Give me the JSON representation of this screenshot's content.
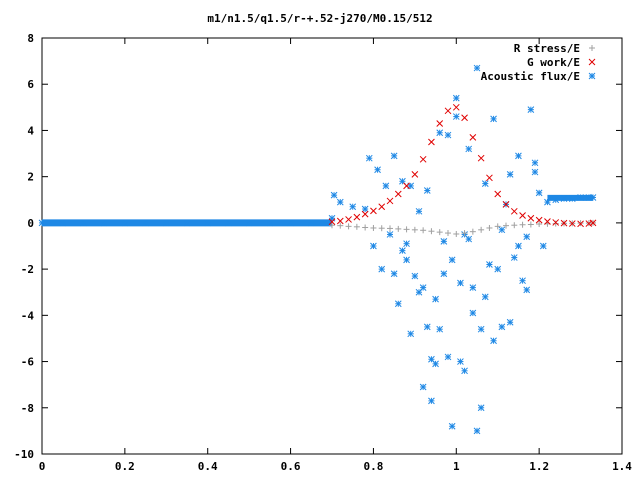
{
  "chart_data": {
    "type": "scatter",
    "title": "m1/n1.5/q1.5/r-+.52-j270/M0.15/512",
    "xlabel": "",
    "ylabel": "",
    "xlim": [
      0,
      1.4
    ],
    "ylim": [
      -10,
      8
    ],
    "x_ticks": [
      "0",
      "0.2",
      "0.4",
      "0.6",
      "0.8",
      "1",
      "1.2",
      "1.4"
    ],
    "y_ticks": [
      "-10",
      "-8",
      "-6",
      "-4",
      "-2",
      "0",
      "2",
      "4",
      "6",
      "8"
    ],
    "grid": false,
    "legend_position": "top-right",
    "series": [
      {
        "name": "R stress/E",
        "marker": "plus",
        "color": "#a0a0a0",
        "x": [
          0.7,
          0.72,
          0.74,
          0.76,
          0.78,
          0.8,
          0.82,
          0.84,
          0.86,
          0.88,
          0.9,
          0.92,
          0.94,
          0.96,
          0.98,
          1.0,
          1.02,
          1.04,
          1.06,
          1.08,
          1.1,
          1.12,
          1.14,
          1.16,
          1.18,
          1.2,
          1.22,
          1.24,
          1.26,
          1.28,
          1.3,
          1.32,
          1.33
        ],
        "y": [
          -0.1,
          -0.12,
          -0.15,
          -0.17,
          -0.2,
          -0.22,
          -0.23,
          -0.24,
          -0.26,
          -0.28,
          -0.3,
          -0.32,
          -0.36,
          -0.4,
          -0.44,
          -0.48,
          -0.44,
          -0.38,
          -0.3,
          -0.22,
          -0.15,
          -0.12,
          -0.1,
          -0.08,
          -0.07,
          -0.05,
          -0.04,
          -0.03,
          -0.02,
          -0.02,
          -0.01,
          -0.01,
          0.0
        ]
      },
      {
        "name": "G work/E",
        "marker": "x",
        "color": "#e00000",
        "x": [
          0.7,
          0.72,
          0.74,
          0.76,
          0.78,
          0.8,
          0.82,
          0.84,
          0.86,
          0.88,
          0.9,
          0.92,
          0.94,
          0.96,
          0.98,
          1.0,
          1.02,
          1.04,
          1.06,
          1.08,
          1.1,
          1.12,
          1.14,
          1.16,
          1.18,
          1.2,
          1.22,
          1.24,
          1.26,
          1.28,
          1.3,
          1.32,
          1.33
        ],
        "y": [
          0.05,
          0.08,
          0.15,
          0.25,
          0.38,
          0.52,
          0.7,
          0.95,
          1.25,
          1.6,
          2.1,
          2.75,
          3.5,
          4.3,
          4.85,
          5.0,
          4.55,
          3.7,
          2.8,
          1.95,
          1.25,
          0.8,
          0.5,
          0.32,
          0.2,
          0.12,
          0.06,
          0.02,
          -0.01,
          -0.03,
          -0.04,
          -0.03,
          0.0
        ]
      },
      {
        "name": "Acoustic flux/E",
        "marker": "star",
        "color": "#1e88e5",
        "x": [
          0.0,
          0.05,
          0.1,
          0.15,
          0.2,
          0.25,
          0.3,
          0.35,
          0.4,
          0.45,
          0.5,
          0.55,
          0.6,
          0.65,
          0.7,
          0.705,
          0.72,
          0.75,
          0.78,
          0.79,
          0.8,
          0.81,
          0.82,
          0.83,
          0.84,
          0.85,
          0.86,
          0.87,
          0.88,
          0.89,
          0.9,
          0.91,
          0.92,
          0.93,
          0.94,
          0.95,
          0.96,
          0.97,
          0.98,
          0.99,
          1.0,
          1.01,
          1.02,
          1.03,
          1.04,
          1.05,
          1.06,
          1.07,
          1.08,
          1.09,
          1.1,
          1.11,
          1.12,
          1.13,
          1.14,
          1.15,
          1.16,
          1.17,
          1.18,
          1.19,
          1.2,
          1.21,
          1.22,
          1.24,
          1.26,
          1.28,
          1.3,
          1.32,
          1.33,
          0.85,
          0.87,
          0.89,
          0.91,
          0.93,
          0.95,
          0.97,
          0.99,
          1.01,
          1.03,
          1.05,
          1.07,
          1.09,
          1.11,
          1.13,
          1.15,
          1.17,
          1.19,
          0.92,
          0.96,
          1.0,
          1.04,
          0.88,
          0.94,
          0.98,
          1.02,
          1.06
        ],
        "y": [
          0,
          0,
          0,
          0,
          0,
          0,
          0,
          0,
          0,
          0,
          0,
          0,
          0,
          0,
          0.2,
          1.2,
          0.9,
          0.7,
          0.6,
          2.8,
          -1.0,
          2.3,
          -2.0,
          1.6,
          -0.5,
          2.9,
          -3.5,
          1.8,
          -1.6,
          -4.8,
          -2.3,
          0.5,
          -2.8,
          1.4,
          -5.9,
          -3.3,
          -4.6,
          -2.2,
          3.8,
          -1.6,
          4.6,
          -6.0,
          -0.5,
          3.2,
          -2.8,
          6.7,
          -4.6,
          1.7,
          -1.8,
          4.5,
          -2.0,
          -4.5,
          0.8,
          2.1,
          -1.5,
          2.9,
          -2.5,
          -0.6,
          4.9,
          2.6,
          1.3,
          -1.0,
          0.9,
          1.0,
          1.05,
          1.05,
          1.1,
          1.1,
          1.1,
          -2.2,
          -1.2,
          1.6,
          -3.0,
          -4.5,
          -6.1,
          -0.8,
          -8.8,
          -2.6,
          -0.7,
          -9.0,
          -3.2,
          -5.1,
          -0.3,
          -4.3,
          -1.0,
          -2.9,
          2.2,
          -7.1,
          3.9,
          5.4,
          -3.9,
          -0.9,
          -7.7,
          -5.8,
          -6.4,
          -8.0
        ]
      }
    ]
  }
}
